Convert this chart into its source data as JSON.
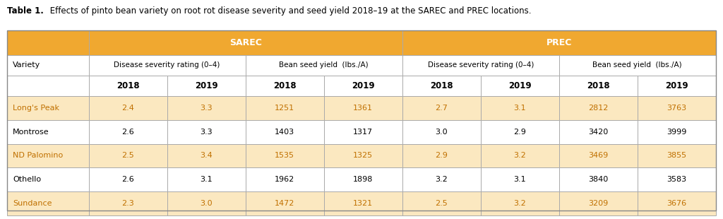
{
  "title_bold": "Table 1.",
  "title_normal": " Effects of pinto bean variety on root rot disease severity and seed yield 2018–19 at the SAREC and PREC locations.",
  "header_color": "#F0A830",
  "header_color_light": "#F5C878",
  "row_color_odd": "#FBE8C0",
  "row_color_even": "#FFFFFF",
  "border_color": "#AAAAAA",
  "bg_color": "#FFFFFF",
  "text_color": "#000000",
  "orange_text_color": "#C07000",
  "col_groups": [
    "SAREC",
    "PREC"
  ],
  "subgroups": [
    "Disease severity rating (0–4)",
    "Bean seed yield  (lbs./A)",
    "Disease severity rating (0–4)",
    "Bean seed yield  (lbs./A)"
  ],
  "years": [
    "2018",
    "2019",
    "2018",
    "2019",
    "2018",
    "2019",
    "2018",
    "2019"
  ],
  "varieties": [
    "Long's Peak",
    "Montrose",
    "ND Palomino",
    "Othello",
    "Sundance"
  ],
  "data": [
    [
      "2.4",
      "3.3",
      "1251",
      "1361",
      "2.7",
      "3.1",
      "2812",
      "3763"
    ],
    [
      "2.6",
      "3.3",
      "1403",
      "1317",
      "3.0",
      "2.9",
      "3420",
      "3999"
    ],
    [
      "2.5",
      "3.4",
      "1535",
      "1325",
      "2.9",
      "3.2",
      "3469",
      "3855"
    ],
    [
      "2.6",
      "3.1",
      "1962",
      "1898",
      "3.2",
      "3.1",
      "3840",
      "3583"
    ],
    [
      "2.3",
      "3.0",
      "1472",
      "1321",
      "2.5",
      "3.2",
      "3209",
      "3676"
    ]
  ]
}
